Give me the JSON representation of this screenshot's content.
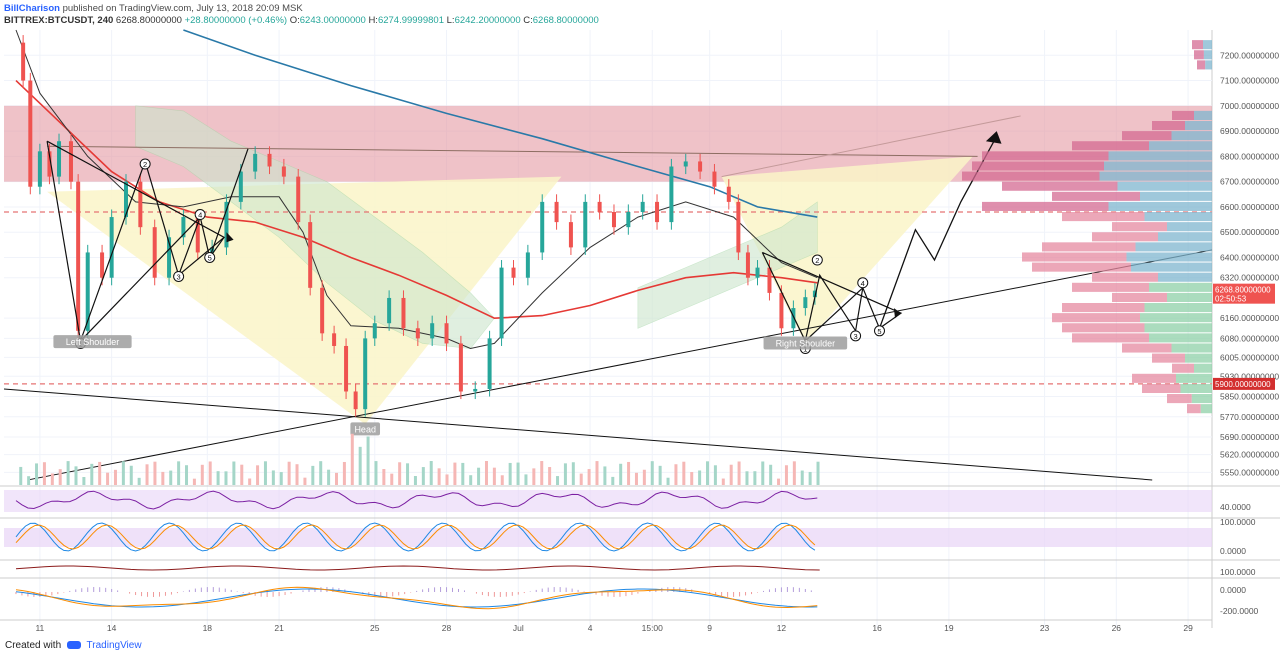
{
  "header": {
    "author": "BillCharison",
    "published": "published on TradingView.com, July 13, 2018 20:09 MSK",
    "symbol": "BITTREX:BTCUSDT, 240",
    "last": "6268.80000000",
    "change": "+28.80000000 (+0.46%)",
    "o_label": "O:",
    "o": "6243.00000000",
    "h_label": "H:",
    "h": "6274.99999801",
    "l_label": "L:",
    "l": "6242.20000000",
    "c_label": "C:",
    "c": "6268.80000000"
  },
  "footer": {
    "created": "Created with",
    "brand": "TradingView"
  },
  "colors": {
    "up": "#26a69a",
    "down": "#ef5350",
    "resistance_zone": "#e59aa3",
    "triangle_fill": "#faf5c8",
    "cloud": "#cde6cd",
    "ma_red": "#e53935",
    "ma_blue": "#2979a8",
    "ma_black": "#333333",
    "price_tag": "#ef5350",
    "level_tag": "#d32f2f",
    "rsi_band": "#e8d4f7"
  },
  "chart_data": {
    "type": "candlestick",
    "title": "BITTREX:BTCUSDT, 240",
    "price_axis": {
      "ylim": [
        5500,
        7300
      ],
      "ticks": [
        "7200.00000000",
        "7100.00000000",
        "7000.00000000",
        "6900.00000000",
        "6800.00000000",
        "6700.00000000",
        "6600.00000000",
        "6500.00000000",
        "6400.00000000",
        "6320.00000000",
        "6160.00000000",
        "6080.00000000",
        "6005.00000000",
        "5930.00000000",
        "5850.00000000",
        "5770.00000000",
        "5690.00000000",
        "5620.00000000",
        "5550.00000000"
      ],
      "last_price_label": "6268.80000000",
      "countdown": "02:50:53",
      "level_label": "5900.00000000",
      "tick_values": [
        7200,
        7100,
        7000,
        6900,
        6800,
        6700,
        6600,
        6500,
        6400,
        6320,
        6160,
        6080,
        6005,
        5930,
        5850,
        5770,
        5690,
        5620,
        5550
      ]
    },
    "time_axis": {
      "ticks": [
        "11",
        "14",
        "18",
        "21",
        "25",
        "28",
        "Jul",
        "4",
        "15:00",
        "9",
        "12",
        "16",
        "19",
        "23",
        "26",
        "29"
      ],
      "tick_days": [
        11,
        14,
        18,
        21,
        25,
        28,
        31,
        34,
        36.6,
        39,
        42,
        46,
        49,
        53,
        56,
        59
      ]
    },
    "candles_sampled": [
      {
        "d": 10.3,
        "o": 7250,
        "c": 7100
      },
      {
        "d": 10.6,
        "o": 7100,
        "c": 6680
      },
      {
        "d": 11.0,
        "o": 6680,
        "c": 6820
      },
      {
        "d": 11.4,
        "o": 6820,
        "c": 6720
      },
      {
        "d": 11.8,
        "o": 6720,
        "c": 6860
      },
      {
        "d": 12.3,
        "o": 6860,
        "c": 6700
      },
      {
        "d": 12.6,
        "o": 6700,
        "c": 6110
      },
      {
        "d": 13.0,
        "o": 6110,
        "c": 6420
      },
      {
        "d": 13.6,
        "o": 6420,
        "c": 6320
      },
      {
        "d": 14.0,
        "o": 6320,
        "c": 6560
      },
      {
        "d": 14.6,
        "o": 6560,
        "c": 6700
      },
      {
        "d": 15.2,
        "o": 6700,
        "c": 6520
      },
      {
        "d": 15.8,
        "o": 6520,
        "c": 6320
      },
      {
        "d": 16.4,
        "o": 6320,
        "c": 6480
      },
      {
        "d": 17.0,
        "o": 6480,
        "c": 6560
      },
      {
        "d": 17.6,
        "o": 6560,
        "c": 6420
      },
      {
        "d": 18.2,
        "o": 6420,
        "c": 6440
      },
      {
        "d": 18.8,
        "o": 6440,
        "c": 6620
      },
      {
        "d": 19.4,
        "o": 6620,
        "c": 6740
      },
      {
        "d": 20.0,
        "o": 6740,
        "c": 6810
      },
      {
        "d": 20.6,
        "o": 6810,
        "c": 6760
      },
      {
        "d": 21.2,
        "o": 6760,
        "c": 6720
      },
      {
        "d": 21.8,
        "o": 6720,
        "c": 6540
      },
      {
        "d": 22.3,
        "o": 6540,
        "c": 6280
      },
      {
        "d": 22.8,
        "o": 6280,
        "c": 6100
      },
      {
        "d": 23.3,
        "o": 6100,
        "c": 6050
      },
      {
        "d": 23.8,
        "o": 6050,
        "c": 5870
      },
      {
        "d": 24.2,
        "o": 5870,
        "c": 5800
      },
      {
        "d": 24.6,
        "o": 5800,
        "c": 6080
      },
      {
        "d": 25.0,
        "o": 6080,
        "c": 6140
      },
      {
        "d": 25.6,
        "o": 6140,
        "c": 6240
      },
      {
        "d": 26.2,
        "o": 6240,
        "c": 6120
      },
      {
        "d": 26.8,
        "o": 6120,
        "c": 6080
      },
      {
        "d": 27.4,
        "o": 6080,
        "c": 6140
      },
      {
        "d": 28.0,
        "o": 6140,
        "c": 6060
      },
      {
        "d": 28.6,
        "o": 6060,
        "c": 5870
      },
      {
        "d": 29.2,
        "o": 5870,
        "c": 5880
      },
      {
        "d": 29.8,
        "o": 5880,
        "c": 6080
      },
      {
        "d": 30.3,
        "o": 6080,
        "c": 6360
      },
      {
        "d": 30.8,
        "o": 6360,
        "c": 6320
      },
      {
        "d": 31.4,
        "o": 6320,
        "c": 6420
      },
      {
        "d": 32.0,
        "o": 6420,
        "c": 6620
      },
      {
        "d": 32.6,
        "o": 6620,
        "c": 6540
      },
      {
        "d": 33.2,
        "o": 6540,
        "c": 6440
      },
      {
        "d": 33.8,
        "o": 6440,
        "c": 6620
      },
      {
        "d": 34.4,
        "o": 6620,
        "c": 6580
      },
      {
        "d": 35.0,
        "o": 6580,
        "c": 6520
      },
      {
        "d": 35.6,
        "o": 6520,
        "c": 6580
      },
      {
        "d": 36.2,
        "o": 6580,
        "c": 6620
      },
      {
        "d": 36.8,
        "o": 6620,
        "c": 6540
      },
      {
        "d": 37.4,
        "o": 6540,
        "c": 6760
      },
      {
        "d": 38.0,
        "o": 6760,
        "c": 6780
      },
      {
        "d": 38.6,
        "o": 6780,
        "c": 6740
      },
      {
        "d": 39.2,
        "o": 6740,
        "c": 6680
      },
      {
        "d": 39.8,
        "o": 6680,
        "c": 6620
      },
      {
        "d": 40.2,
        "o": 6620,
        "c": 6420
      },
      {
        "d": 40.6,
        "o": 6420,
        "c": 6320
      },
      {
        "d": 41.0,
        "o": 6320,
        "c": 6360
      },
      {
        "d": 41.5,
        "o": 6360,
        "c": 6260
      },
      {
        "d": 42.0,
        "o": 6260,
        "c": 6120
      },
      {
        "d": 42.5,
        "o": 6120,
        "c": 6200
      },
      {
        "d": 43.0,
        "o": 6200,
        "c": 6243
      },
      {
        "d": 43.4,
        "o": 6243,
        "c": 6268.8
      }
    ],
    "moving_averages": [
      {
        "color": "#e53935",
        "points": [
          [
            10,
            7100
          ],
          [
            12,
            6920
          ],
          [
            14,
            6740
          ],
          [
            16,
            6620
          ],
          [
            18,
            6560
          ],
          [
            20,
            6540
          ],
          [
            22,
            6480
          ],
          [
            24,
            6400
          ],
          [
            26,
            6330
          ],
          [
            28,
            6250
          ],
          [
            30,
            6160
          ],
          [
            32,
            6170
          ],
          [
            34,
            6210
          ],
          [
            36,
            6270
          ],
          [
            38,
            6320
          ],
          [
            40,
            6340
          ],
          [
            42,
            6320
          ],
          [
            43.5,
            6300
          ]
        ]
      },
      {
        "color": "#2979a8",
        "points": [
          [
            17,
            7300
          ],
          [
            20,
            7200
          ],
          [
            24,
            7080
          ],
          [
            28,
            6970
          ],
          [
            32,
            6870
          ],
          [
            36,
            6760
          ],
          [
            39,
            6680
          ],
          [
            41,
            6600
          ],
          [
            43.5,
            6560
          ]
        ]
      },
      {
        "color": "#333333",
        "points": [
          [
            10,
            7300
          ],
          [
            11,
            7050
          ],
          [
            13,
            6800
          ],
          [
            15,
            6620
          ],
          [
            17,
            6600
          ],
          [
            19,
            6640
          ],
          [
            21,
            6640
          ],
          [
            22,
            6500
          ],
          [
            23,
            6250
          ],
          [
            24,
            6130
          ],
          [
            26,
            6120
          ],
          [
            28,
            6080
          ],
          [
            29,
            6040
          ],
          [
            30,
            6060
          ],
          [
            32,
            6260
          ],
          [
            34,
            6440
          ],
          [
            36,
            6560
          ],
          [
            38,
            6620
          ],
          [
            40,
            6560
          ],
          [
            42,
            6380
          ],
          [
            43.5,
            6320
          ]
        ]
      }
    ],
    "levels": [
      {
        "name": "resistance-zone",
        "from": 6700,
        "to": 7000
      },
      {
        "name": "dashed-red",
        "value": 6580
      },
      {
        "name": "dashed-red",
        "value": 5900
      }
    ],
    "pattern_labels": [
      {
        "text": "Left Shoulder",
        "d": 13.2,
        "p": 6065
      },
      {
        "text": "Head",
        "d": 24.6,
        "p": 5720
      },
      {
        "text": "Right Shoulder",
        "d": 43.0,
        "p": 6060
      }
    ],
    "wave_labels": [
      {
        "text": "1",
        "d": 12.7,
        "p": 6060
      },
      {
        "text": "2",
        "d": 15.4,
        "p": 6770
      },
      {
        "text": "3",
        "d": 16.8,
        "p": 6325
      },
      {
        "text": "4",
        "d": 17.7,
        "p": 6570
      },
      {
        "text": "5",
        "d": 18.1,
        "p": 6400
      },
      {
        "text": "1",
        "d": 43.0,
        "p": 6040
      },
      {
        "text": "2",
        "d": 43.5,
        "p": 6390
      },
      {
        "text": "3",
        "d": 45.1,
        "p": 6090
      },
      {
        "text": "4",
        "d": 45.4,
        "p": 6300
      },
      {
        "text": "5",
        "d": 46.1,
        "p": 6110
      }
    ],
    "indicator_axes": {
      "rsi": [
        "40.0000"
      ],
      "stoch": [
        "100.0000",
        "0.0000"
      ],
      "macd_top": [
        "100.0000"
      ],
      "macd": [
        "0.0000",
        "-200.0000"
      ]
    }
  }
}
